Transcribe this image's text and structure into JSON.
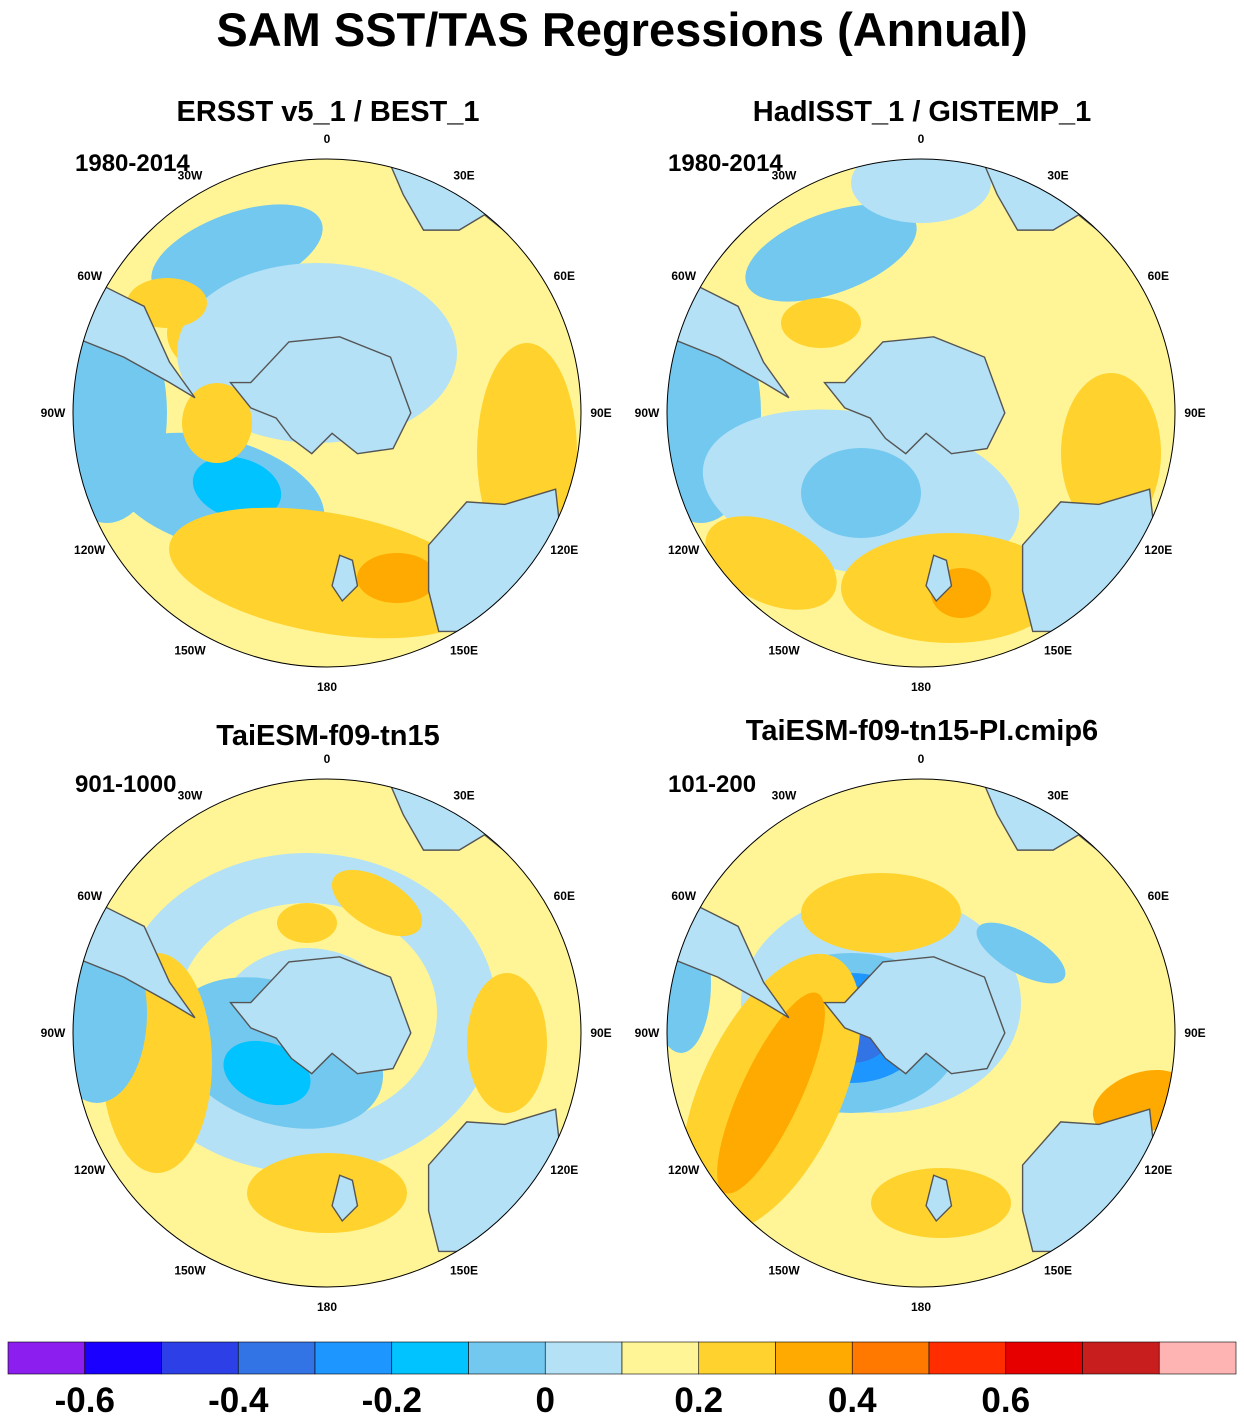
{
  "title": "SAM SST/TAS Regressions (Annual)",
  "panels": [
    {
      "title": "ERSST v5_1 / BEST_1",
      "period": "1980-2014"
    },
    {
      "title": "HadISST_1 / GISTEMP_1",
      "period": "1980-2014"
    },
    {
      "title": "TaiESM-f09-tn15",
      "period": "901-1000"
    },
    {
      "title": "TaiESM-f09-tn15-PI.cmip6",
      "period": "101-200"
    }
  ],
  "longitude_labels": [
    "0",
    "30E",
    "60E",
    "90E",
    "120E",
    "150E",
    "180",
    "150W",
    "120W",
    "90W",
    "60W",
    "30W"
  ],
  "colorbar": {
    "colors": [
      "#8c1ff0",
      "#1a00ff",
      "#2d3fe6",
      "#3273e6",
      "#1e96ff",
      "#00c3ff",
      "#73c8f0",
      "#b4e1f5",
      "#fff596",
      "#ffd22d",
      "#ffaa00",
      "#ff7800",
      "#ff2d00",
      "#e60000",
      "#c81e1e",
      "#ffb4b4"
    ],
    "tick_labels": [
      "-0.6",
      "-0.4",
      "-0.2",
      "0",
      "0.2",
      "0.4",
      "0.6"
    ]
  },
  "colors": {
    "land": "#b4e1f5",
    "coast": "#555555"
  }
}
